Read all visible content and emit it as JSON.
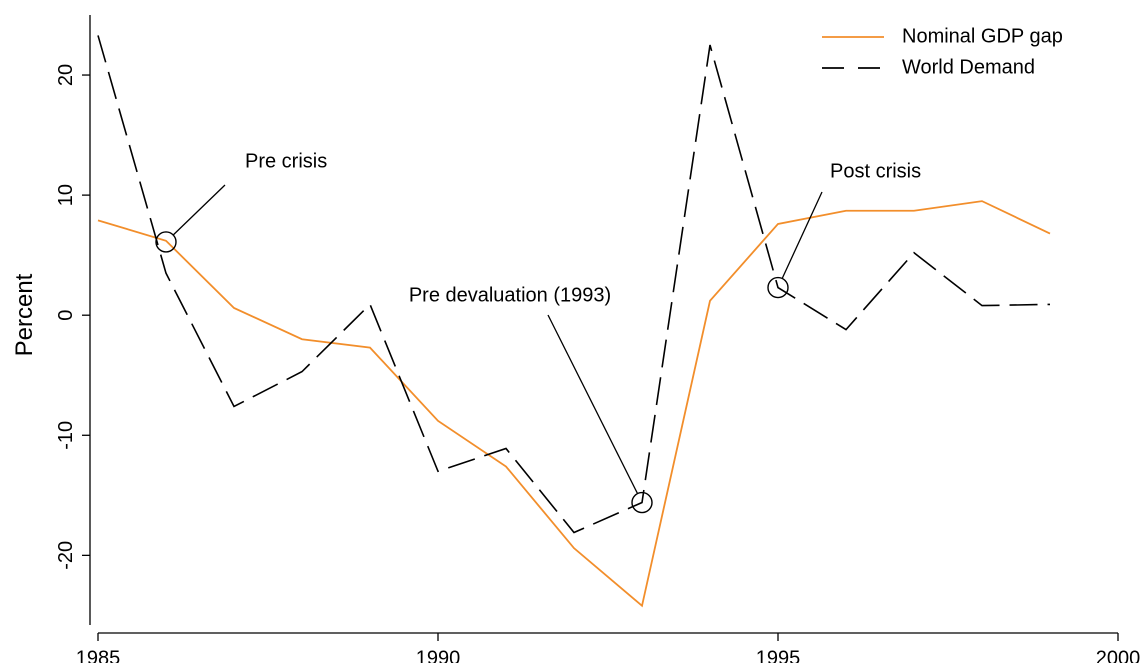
{
  "chart_data": {
    "type": "line",
    "x": [
      1985,
      1986,
      1987,
      1988,
      1989,
      1990,
      1991,
      1992,
      1993,
      1994,
      1995,
      1996,
      1997,
      1998,
      1999
    ],
    "series": [
      {
        "name": "Nominal GDP gap",
        "color": "#f28e2b",
        "dash": "solid",
        "values": [
          7.9,
          6.2,
          0.6,
          -2.0,
          -2.7,
          -8.8,
          -12.6,
          -19.4,
          -24.2,
          1.2,
          7.6,
          8.7,
          8.7,
          9.5,
          6.8
        ]
      },
      {
        "name": "World Demand",
        "color": "#000000",
        "dash": "dashed",
        "values": [
          23.3,
          3.5,
          -7.6,
          -4.7,
          0.9,
          -13.0,
          -11.1,
          -18.1,
          -15.6,
          22.5,
          2.3,
          -1.2,
          5.2,
          0.8,
          0.9
        ]
      }
    ],
    "y_label": "Percent",
    "xlim": [
      1985,
      2000
    ],
    "xticks": [
      1985,
      1990,
      1995,
      2000
    ],
    "ylim": [
      -25.8,
      25
    ],
    "yticks": [
      -20,
      -10,
      0,
      10,
      20
    ],
    "legend": "top-right",
    "annotations": [
      {
        "text": "Pre crisis",
        "x": 1986,
        "y": 6.1
      },
      {
        "text": "Pre devaluation (1993)",
        "x": 1993,
        "y": -15.6
      },
      {
        "text": "Post crisis",
        "x": 1995,
        "y": 2.3
      }
    ]
  }
}
